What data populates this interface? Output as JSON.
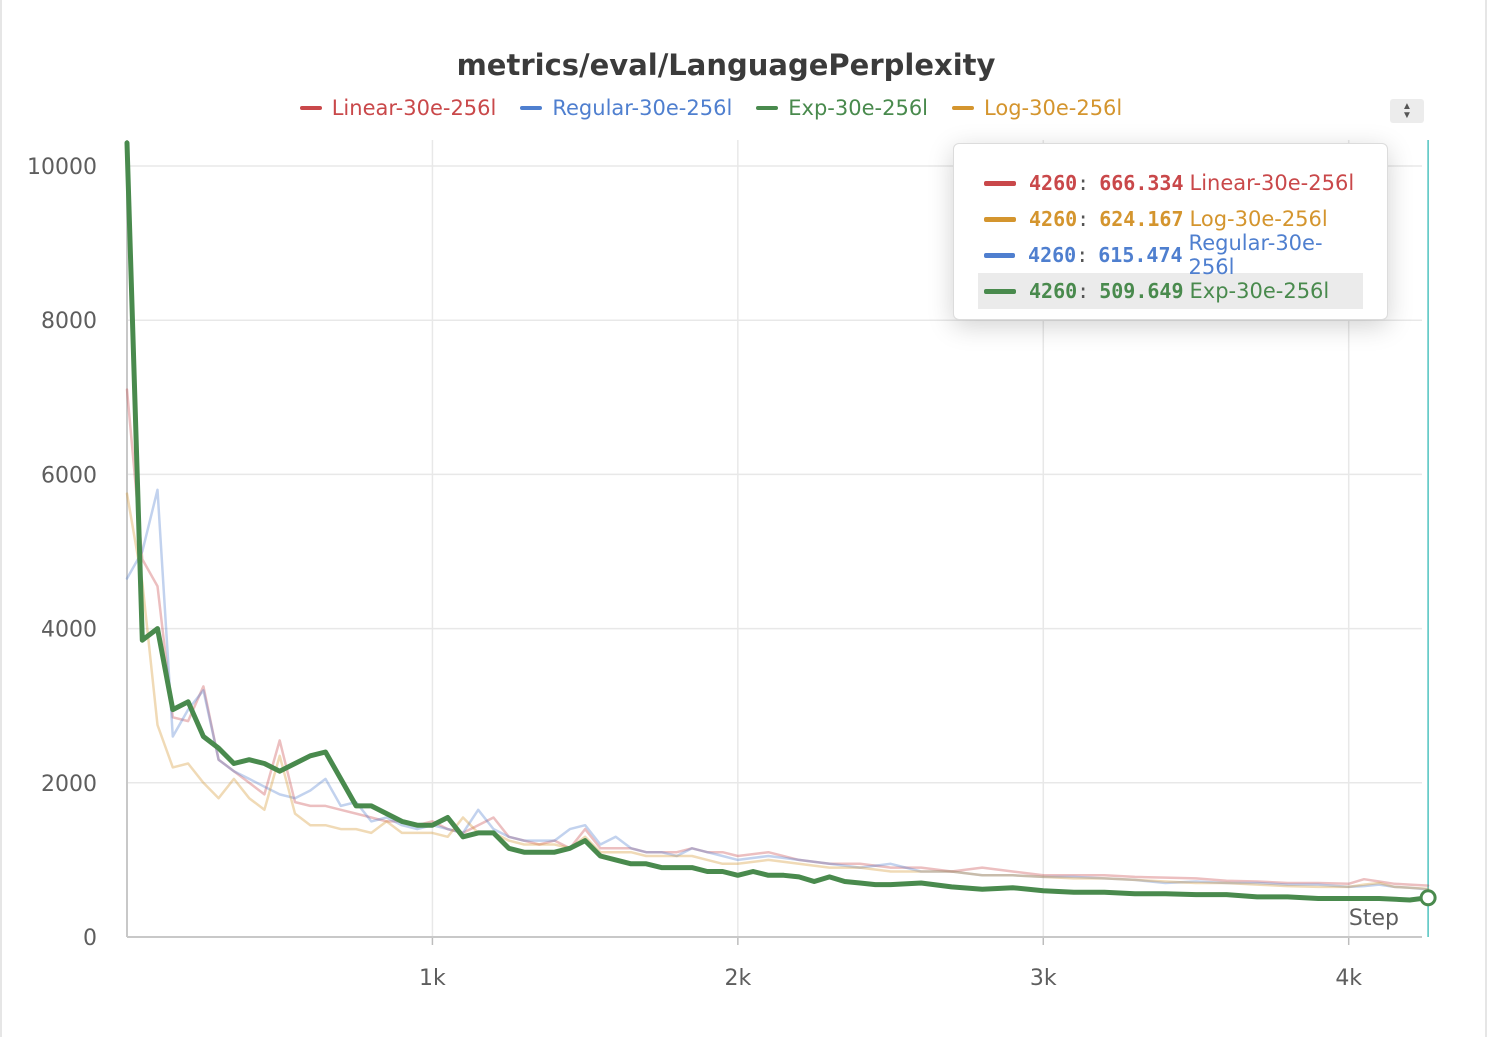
{
  "title": "metrics/eval/LanguagePerplexity",
  "legend": [
    {
      "name": "Linear-30e-256l",
      "color": "#c9484a"
    },
    {
      "name": "Regular-30e-256l",
      "color": "#4f7fcf"
    },
    {
      "name": "Exp-30e-256l",
      "color": "#498a4d"
    },
    {
      "name": "Log-30e-256l",
      "color": "#d4952e"
    }
  ],
  "legend_toggle_icon": "sort-arrows-icon",
  "tooltip": {
    "rows": [
      {
        "step": "4260",
        "value": "666.334",
        "name": "Linear-30e-256l",
        "color": "#c9484a"
      },
      {
        "step": "4260",
        "value": "624.167",
        "name": "Log-30e-256l",
        "color": "#d4952e"
      },
      {
        "step": "4260",
        "value": "615.474",
        "name": "Regular-30e-256l",
        "color": "#4f7fcf"
      },
      {
        "step": "4260",
        "value": "509.649",
        "name": "Exp-30e-256l",
        "color": "#498a4d"
      }
    ]
  },
  "chart_data": {
    "type": "line",
    "title": "metrics/eval/LanguagePerplexity",
    "xlabel": "Step",
    "ylabel": "",
    "xlim": [
      0,
      4300
    ],
    "ylim": [
      0,
      10300
    ],
    "xticks": [
      {
        "v": 1000,
        "label": "1k"
      },
      {
        "v": 2000,
        "label": "2k"
      },
      {
        "v": 3000,
        "label": "3k"
      },
      {
        "v": 4000,
        "label": "4k"
      }
    ],
    "yticks": [
      {
        "v": 0,
        "label": "0"
      },
      {
        "v": 2000,
        "label": "2000"
      },
      {
        "v": 4000,
        "label": "4000"
      },
      {
        "v": 6000,
        "label": "6000"
      },
      {
        "v": 8000,
        "label": "8000"
      },
      {
        "v": 10000,
        "label": "10000"
      }
    ],
    "grid": true,
    "legend_position": "top",
    "hover_step": 4260,
    "series": [
      {
        "name": "Linear-30e-256l",
        "color": "#c9484a",
        "opacity": 0.35,
        "width": 2.5,
        "x": [
          0,
          50,
          100,
          150,
          200,
          250,
          300,
          350,
          400,
          450,
          500,
          550,
          600,
          650,
          700,
          750,
          800,
          850,
          900,
          950,
          1000,
          1050,
          1100,
          1150,
          1200,
          1250,
          1300,
          1350,
          1400,
          1450,
          1500,
          1550,
          1600,
          1650,
          1700,
          1750,
          1800,
          1850,
          1900,
          1950,
          2000,
          2100,
          2200,
          2300,
          2400,
          2500,
          2600,
          2700,
          2800,
          2900,
          3000,
          3100,
          3200,
          3300,
          3400,
          3500,
          3600,
          3700,
          3800,
          3900,
          4000,
          4050,
          4100,
          4150,
          4200,
          4260
        ],
        "y": [
          7100,
          4900,
          4550,
          2850,
          2800,
          3250,
          2300,
          2150,
          2000,
          1850,
          2550,
          1750,
          1700,
          1700,
          1650,
          1600,
          1550,
          1500,
          1500,
          1450,
          1500,
          1400,
          1350,
          1450,
          1550,
          1300,
          1250,
          1200,
          1250,
          1150,
          1400,
          1150,
          1150,
          1150,
          1100,
          1100,
          1100,
          1150,
          1100,
          1100,
          1050,
          1100,
          1000,
          950,
          950,
          900,
          900,
          850,
          900,
          850,
          800,
          800,
          800,
          780,
          770,
          760,
          730,
          720,
          700,
          700,
          690,
          750,
          720,
          690,
          680,
          666.334
        ]
      },
      {
        "name": "Regular-30e-256l",
        "color": "#4f7fcf",
        "opacity": 0.35,
        "width": 2.5,
        "x": [
          0,
          50,
          100,
          150,
          200,
          250,
          300,
          350,
          400,
          450,
          500,
          550,
          600,
          650,
          700,
          750,
          800,
          850,
          900,
          950,
          1000,
          1050,
          1100,
          1150,
          1200,
          1250,
          1300,
          1350,
          1400,
          1450,
          1500,
          1550,
          1600,
          1650,
          1700,
          1750,
          1800,
          1850,
          1900,
          1950,
          2000,
          2100,
          2200,
          2300,
          2400,
          2500,
          2600,
          2700,
          2800,
          2900,
          3000,
          3100,
          3200,
          3300,
          3400,
          3500,
          3600,
          3700,
          3800,
          3900,
          4000,
          4050,
          4100,
          4150,
          4200,
          4260
        ],
        "y": [
          4650,
          5000,
          5800,
          2600,
          2950,
          3200,
          2300,
          2150,
          2050,
          1950,
          1850,
          1800,
          1900,
          2050,
          1700,
          1750,
          1500,
          1550,
          1450,
          1400,
          1450,
          1400,
          1350,
          1650,
          1400,
          1300,
          1250,
          1250,
          1250,
          1400,
          1450,
          1200,
          1300,
          1150,
          1100,
          1100,
          1050,
          1150,
          1100,
          1050,
          1000,
          1050,
          1000,
          950,
          900,
          950,
          850,
          850,
          800,
          800,
          780,
          780,
          760,
          740,
          700,
          720,
          700,
          700,
          680,
          680,
          650,
          660,
          680,
          650,
          640,
          615.474
        ]
      },
      {
        "name": "Log-30e-256l",
        "color": "#d4952e",
        "opacity": 0.35,
        "width": 2.5,
        "x": [
          0,
          50,
          100,
          150,
          200,
          250,
          300,
          350,
          400,
          450,
          500,
          550,
          600,
          650,
          700,
          750,
          800,
          850,
          900,
          950,
          1000,
          1050,
          1100,
          1150,
          1200,
          1250,
          1300,
          1350,
          1400,
          1450,
          1500,
          1550,
          1600,
          1650,
          1700,
          1750,
          1800,
          1850,
          1900,
          1950,
          2000,
          2100,
          2200,
          2300,
          2400,
          2500,
          2600,
          2700,
          2800,
          2900,
          3000,
          3100,
          3200,
          3300,
          3400,
          3500,
          3600,
          3700,
          3800,
          3900,
          4000,
          4050,
          4100,
          4150,
          4200,
          4260
        ],
        "y": [
          5750,
          4600,
          2750,
          2200,
          2250,
          2000,
          1800,
          2050,
          1800,
          1650,
          2350,
          1600,
          1450,
          1450,
          1400,
          1400,
          1350,
          1500,
          1350,
          1350,
          1350,
          1300,
          1550,
          1350,
          1350,
          1250,
          1200,
          1200,
          1200,
          1150,
          1300,
          1100,
          1100,
          1100,
          1050,
          1050,
          1050,
          1050,
          1000,
          950,
          950,
          1000,
          950,
          900,
          900,
          850,
          850,
          850,
          800,
          800,
          780,
          760,
          760,
          740,
          720,
          700,
          700,
          680,
          660,
          650,
          650,
          680,
          700,
          650,
          640,
          624.167
        ]
      },
      {
        "name": "Exp-30e-256l",
        "color": "#498a4d",
        "opacity": 1,
        "width": 5,
        "x": [
          0,
          50,
          100,
          150,
          200,
          250,
          300,
          350,
          400,
          450,
          500,
          550,
          600,
          650,
          700,
          750,
          800,
          850,
          900,
          950,
          1000,
          1050,
          1100,
          1150,
          1200,
          1250,
          1300,
          1350,
          1400,
          1450,
          1500,
          1550,
          1600,
          1650,
          1700,
          1750,
          1800,
          1850,
          1900,
          1950,
          2000,
          2050,
          2100,
          2150,
          2200,
          2250,
          2300,
          2350,
          2400,
          2450,
          2500,
          2600,
          2700,
          2800,
          2900,
          3000,
          3100,
          3200,
          3300,
          3400,
          3500,
          3600,
          3700,
          3800,
          3900,
          4000,
          4100,
          4200,
          4260
        ],
        "y": [
          10300,
          3850,
          4000,
          2950,
          3050,
          2600,
          2450,
          2250,
          2300,
          2250,
          2150,
          2250,
          2350,
          2400,
          2050,
          1700,
          1700,
          1600,
          1500,
          1450,
          1450,
          1550,
          1300,
          1350,
          1350,
          1150,
          1100,
          1100,
          1100,
          1150,
          1250,
          1050,
          1000,
          950,
          950,
          900,
          900,
          900,
          850,
          850,
          800,
          850,
          800,
          800,
          780,
          720,
          780,
          720,
          700,
          680,
          680,
          700,
          650,
          620,
          640,
          600,
          580,
          580,
          560,
          560,
          550,
          550,
          520,
          520,
          500,
          500,
          500,
          480,
          509.649
        ]
      }
    ]
  }
}
